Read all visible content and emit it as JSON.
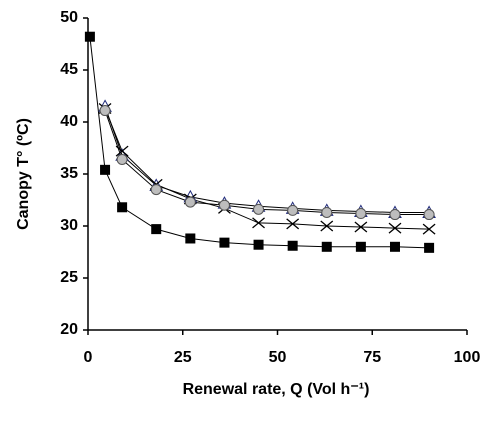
{
  "chart_data": {
    "type": "line",
    "xlabel": "Renewal rate, Q (Vol h⁻¹)",
    "ylabel": "Canopy T° (ºC)",
    "xlim": [
      0,
      100
    ],
    "xticks": [
      0,
      25,
      50,
      75,
      100
    ],
    "ylim": [
      20,
      50
    ],
    "yticks": [
      20,
      25,
      30,
      35,
      40,
      45,
      50
    ],
    "grid": false,
    "series": [
      {
        "marker": "triangle",
        "color": "#1f2a7a",
        "x": [
          4.5,
          9,
          18,
          27,
          36,
          45,
          54,
          63,
          72,
          81,
          90
        ],
        "values": [
          41.5,
          36.8,
          33.9,
          32.8,
          32.2,
          31.9,
          31.7,
          31.5,
          31.4,
          31.3,
          31.3
        ]
      },
      {
        "marker": "x",
        "color": "#000000",
        "x": [
          4.5,
          9,
          18,
          27,
          36,
          45,
          54,
          63,
          72,
          81,
          90
        ],
        "values": [
          41.3,
          37.2,
          34.0,
          32.6,
          31.7,
          30.3,
          30.2,
          30.0,
          29.9,
          29.8,
          29.7
        ]
      },
      {
        "marker": "circle",
        "color": "#bdbdbd",
        "x": [
          4.5,
          9,
          18,
          27,
          36,
          45,
          54,
          63,
          72,
          81,
          90
        ],
        "values": [
          41.1,
          36.4,
          33.5,
          32.3,
          32.0,
          31.6,
          31.5,
          31.3,
          31.2,
          31.1,
          31.1
        ]
      },
      {
        "marker": "square",
        "color": "#000000",
        "x": [
          0.5,
          4.5,
          9,
          18,
          27,
          36,
          45,
          54,
          63,
          72,
          81,
          90
        ],
        "values": [
          48.2,
          35.4,
          31.8,
          29.7,
          28.8,
          28.4,
          28.2,
          28.1,
          28.0,
          28.0,
          28.0,
          27.9
        ]
      }
    ]
  }
}
